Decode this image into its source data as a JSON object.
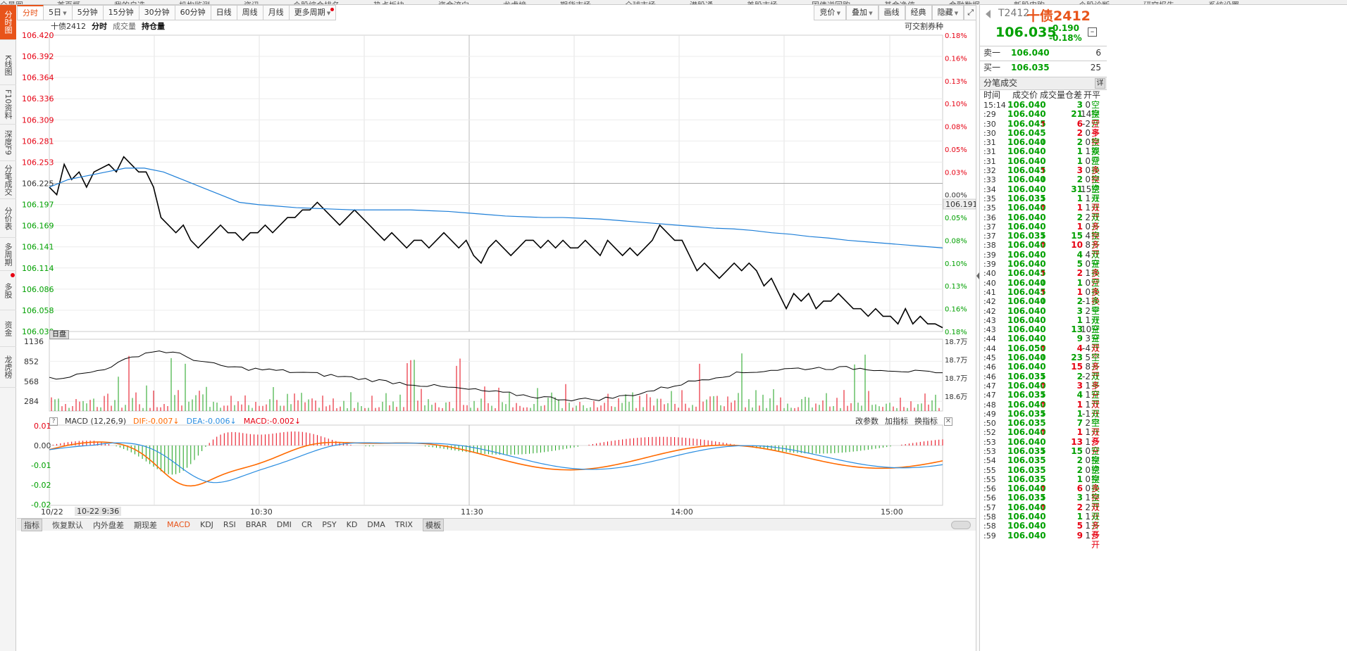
{
  "top_menu": [
    "全景图",
    "首页概",
    "我的自选",
    "机构监测",
    "资讯",
    "个股综合排名",
    "热点板块",
    "资金流向",
    "龙虎榜",
    "期货市场",
    "全球市场",
    "港股通",
    "美股市场",
    "国债逆回购",
    "基金净值",
    "金融数据",
    "新股申购",
    "个股诊断",
    "研究报告",
    "系统设置"
  ],
  "nav": {
    "intraday": "分时图",
    "kline": "K线图",
    "f10": "F10资料",
    "depth": "深度F9",
    "ticks": "分笔成交",
    "price_table": "分价表",
    "multi_period": "多周期",
    "multi_stock": "多股",
    "funds": "资金",
    "dragon": "龙虎榜"
  },
  "periods": [
    "分时",
    "5日",
    "5分钟",
    "15分钟",
    "30分钟",
    "60分钟",
    "日线",
    "周线",
    "月线",
    "更多周期"
  ],
  "right_tools": [
    "竞价",
    "叠加",
    "画线",
    "经典",
    "隐藏"
  ],
  "info": {
    "code_name": "十债2412",
    "tab1": "分时",
    "tab2": "成交量",
    "tab3": "持仓量",
    "right_note": "可交割券种"
  },
  "day_cap": "日盘",
  "last_price_tag": "106.191",
  "price_axis": [
    "106.420",
    "106.392",
    "106.364",
    "106.336",
    "106.309",
    "106.281",
    "106.253",
    "106.225",
    "106.197",
    "106.169",
    "106.141",
    "106.114",
    "106.086",
    "106.058",
    "106.030"
  ],
  "pct_axis": [
    "0.18%",
    "0.16%",
    "0.13%",
    "0.10%",
    "0.08%",
    "0.05%",
    "0.03%",
    "0.00%",
    "0.05%",
    "0.08%",
    "0.10%",
    "0.13%",
    "0.16%",
    "0.18%"
  ],
  "vol_axis": [
    "1136",
    "852",
    "568",
    "284"
  ],
  "oi_axis": [
    "18.7万",
    "18.7万",
    "18.7万",
    "18.6万"
  ],
  "macd_axis": [
    "0.01",
    "0.00",
    "-0.01",
    "-0.02",
    "-0.02"
  ],
  "macd": {
    "name": "MACD (12,26,9)",
    "dif": "DIF:-0.007↓",
    "dea": "DEA:-0.006↓",
    "macd": "MACD:-0.002↓",
    "tools": [
      "改参数",
      "加指标",
      "换指标"
    ]
  },
  "time_axis": {
    "date": "10/22",
    "cursor": "10-22 9:36",
    "t1": "10:30",
    "t2": "11:30",
    "t3": "14:00",
    "t4": "15:00"
  },
  "bottom": [
    "指标",
    "恢复默认",
    "内外盘差",
    "期现差",
    "MACD",
    "KDJ",
    "RSI",
    "BRAR",
    "DMI",
    "CR",
    "PSY",
    "KD",
    "DMA",
    "TRIX",
    "模板"
  ],
  "colors": {
    "accent": "#e8541a",
    "up": "#e60012",
    "down": "#00a000",
    "avg_line": "#1e7fd8",
    "dif": "#ff6a00",
    "dea": "#2a8de0"
  },
  "chart_data": {
    "type": "line",
    "title": "十债2412 分时",
    "x_range": [
      "9:30",
      "15:15"
    ],
    "ylim": [
      106.03,
      106.42
    ],
    "prev_close": 106.225,
    "price": [
      106.22,
      106.21,
      106.25,
      106.23,
      106.24,
      106.22,
      106.24,
      106.245,
      106.25,
      106.24,
      106.26,
      106.25,
      106.24,
      106.24,
      106.22,
      106.18,
      106.17,
      106.16,
      106.17,
      106.15,
      106.14,
      106.15,
      106.16,
      106.17,
      106.16,
      106.16,
      106.15,
      106.16,
      106.16,
      106.17,
      106.16,
      106.17,
      106.18,
      106.18,
      106.19,
      106.19,
      106.2,
      106.19,
      106.18,
      106.17,
      106.18,
      106.19,
      106.18,
      106.17,
      106.16,
      106.15,
      106.16,
      106.15,
      106.14,
      106.15,
      106.15,
      106.14,
      106.15,
      106.16,
      106.15,
      106.14,
      106.15,
      106.13,
      106.12,
      106.14,
      106.15,
      106.14,
      106.13,
      106.14,
      106.15,
      106.15,
      106.14,
      106.15,
      106.14,
      106.15,
      106.14,
      106.14,
      106.15,
      106.14,
      106.13,
      106.15,
      106.14,
      106.13,
      106.14,
      106.13,
      106.14,
      106.15,
      106.17,
      106.16,
      106.15,
      106.15,
      106.13,
      106.11,
      106.12,
      106.11,
      106.1,
      106.11,
      106.12,
      106.11,
      106.12,
      106.11,
      106.09,
      106.1,
      106.08,
      106.06,
      106.08,
      106.07,
      106.08,
      106.06,
      106.07,
      106.07,
      106.08,
      106.07,
      106.06,
      106.06,
      106.05,
      106.06,
      106.05,
      106.05,
      106.04,
      106.06,
      106.04,
      106.05,
      106.04,
      106.04,
      106.035
    ],
    "avg": [
      106.22,
      106.23,
      106.235,
      106.24,
      106.245,
      106.245,
      106.24,
      106.23,
      106.22,
      106.21,
      106.2,
      106.197,
      106.195,
      106.193,
      106.192,
      106.191,
      106.19,
      106.19,
      106.19,
      106.19,
      106.189,
      106.188,
      106.186,
      106.184,
      106.182,
      106.181,
      106.18,
      106.18,
      106.179,
      106.178,
      106.176,
      106.174,
      106.172,
      106.17,
      106.168,
      106.166,
      106.165,
      106.163,
      106.16,
      106.158,
      106.155,
      106.153,
      106.15,
      106.148,
      106.146,
      106.144,
      106.142,
      106.14
    ]
  },
  "quote": {
    "code": "T2412",
    "name": "十债2412",
    "price": "106.035",
    "chg": "-0.190",
    "pct": "-0.18%",
    "sell_label": "卖一",
    "sell_price": "106.040",
    "sell_vol": "6",
    "buy_label": "买一",
    "buy_price": "106.035",
    "buy_vol": "25"
  },
  "ticks_title": "分笔成交",
  "ticks_detail": "详",
  "ticks_cols": [
    "时间",
    "成交价",
    "成交量",
    "仓差",
    "开平"
  ],
  "ticks": [
    [
      "15:14",
      "106.040",
      "",
      "3",
      "0",
      "空换",
      "dn"
    ],
    [
      "29",
      "106.040",
      "",
      "21",
      "14",
      "空开",
      "dn"
    ],
    [
      "30",
      "106.045",
      "up",
      "6",
      "-2",
      "空平",
      "up"
    ],
    [
      "30",
      "106.045",
      "",
      "2",
      "0",
      "多换",
      "up"
    ],
    [
      "31",
      "106.040",
      "dn",
      "2",
      "0",
      "空换",
      "dn"
    ],
    [
      "31",
      "106.040",
      "",
      "1",
      "1",
      "双开",
      "dn"
    ],
    [
      "31",
      "106.040",
      "",
      "1",
      "0",
      "空换",
      "dn"
    ],
    [
      "32",
      "106.045",
      "up",
      "3",
      "0",
      "多换",
      "up"
    ],
    [
      "33",
      "106.040",
      "dn",
      "2",
      "0",
      "空换",
      "dn"
    ],
    [
      "34",
      "106.040",
      "",
      "31",
      "15",
      "空开",
      "dn"
    ],
    [
      "35",
      "106.035",
      "dn",
      "1",
      "1",
      "双开",
      "dn"
    ],
    [
      "35",
      "106.040",
      "up",
      "1",
      "1",
      "双开",
      "up"
    ],
    [
      "36",
      "106.040",
      "",
      "2",
      "2",
      "双开",
      "dn"
    ],
    [
      "37",
      "106.040",
      "",
      "1",
      "0",
      "多换",
      "up"
    ],
    [
      "37",
      "106.035",
      "dn",
      "15",
      "4",
      "空开",
      "dn"
    ],
    [
      "38",
      "106.040",
      "up",
      "10",
      "8",
      "多开",
      "up"
    ],
    [
      "39",
      "106.040",
      "",
      "4",
      "4",
      "双开",
      "dn"
    ],
    [
      "39",
      "106.040",
      "",
      "5",
      "0",
      "空换",
      "dn"
    ],
    [
      "40",
      "106.045",
      "up",
      "2",
      "1",
      "多开",
      "up"
    ],
    [
      "40",
      "106.040",
      "dn",
      "1",
      "0",
      "空换",
      "dn"
    ],
    [
      "41",
      "106.045",
      "up",
      "1",
      "0",
      "多换",
      "up"
    ],
    [
      "42",
      "106.040",
      "dn",
      "2",
      "-1",
      "多平",
      "dn"
    ],
    [
      "42",
      "106.040",
      "",
      "3",
      "2",
      "空开",
      "dn"
    ],
    [
      "43",
      "106.040",
      "",
      "1",
      "1",
      "双开",
      "dn"
    ],
    [
      "43",
      "106.040",
      "",
      "13",
      "10",
      "空开",
      "dn"
    ],
    [
      "44",
      "106.040",
      "",
      "9",
      "3",
      "空开",
      "dn"
    ],
    [
      "44",
      "106.050",
      "up",
      "4",
      "-4",
      "双平",
      "up"
    ],
    [
      "45",
      "106.040",
      "dn",
      "23",
      "5",
      "空开",
      "dn"
    ],
    [
      "46",
      "106.040",
      "",
      "15",
      "8",
      "多开",
      "up"
    ],
    [
      "46",
      "106.035",
      "dn",
      "2",
      "-2",
      "双平",
      "dn"
    ],
    [
      "47",
      "106.040",
      "up",
      "3",
      "1",
      "多开",
      "up"
    ],
    [
      "47",
      "106.035",
      "dn",
      "4",
      "1",
      "空开",
      "dn"
    ],
    [
      "48",
      "106.040",
      "up",
      "1",
      "1",
      "双开",
      "up"
    ],
    [
      "49",
      "106.035",
      "dn",
      "1",
      "-1",
      "双平",
      "dn"
    ],
    [
      "50",
      "106.035",
      "",
      "7",
      "2",
      "空开",
      "dn"
    ],
    [
      "52",
      "106.040",
      "up",
      "1",
      "1",
      "双开",
      "up"
    ],
    [
      "53",
      "106.040",
      "",
      "13",
      "1",
      "多开",
      "up"
    ],
    [
      "53",
      "106.035",
      "dn",
      "15",
      "0",
      "空换",
      "dn"
    ],
    [
      "54",
      "106.035",
      "",
      "2",
      "0",
      "空换",
      "dn"
    ],
    [
      "55",
      "106.035",
      "",
      "2",
      "0",
      "空换",
      "dn"
    ],
    [
      "55",
      "106.035",
      "",
      "1",
      "0",
      "空换",
      "dn"
    ],
    [
      "56",
      "106.040",
      "up",
      "6",
      "0",
      "多换",
      "up"
    ],
    [
      "56",
      "106.035",
      "dn",
      "3",
      "1",
      "空开",
      "dn"
    ],
    [
      "57",
      "106.040",
      "up",
      "2",
      "2",
      "双开",
      "up"
    ],
    [
      "58",
      "106.040",
      "",
      "1",
      "1",
      "双开",
      "dn"
    ],
    [
      "58",
      "106.040",
      "",
      "5",
      "1",
      "多开",
      "up"
    ],
    [
      "59",
      "106.040",
      "",
      "9",
      "1",
      "多开",
      "up"
    ]
  ]
}
